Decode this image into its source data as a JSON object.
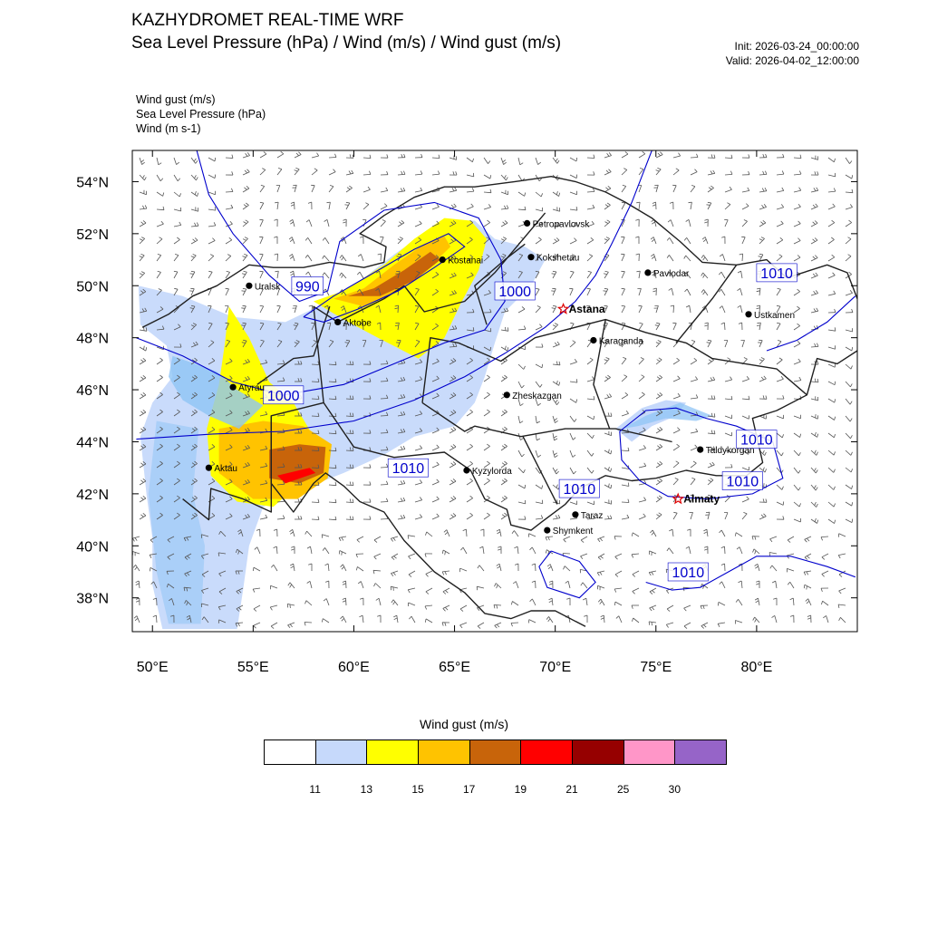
{
  "header": {
    "title": "KAZHYDROMET REAL-TIME WRF",
    "subtitle": "Sea Level Pressure  (hPa) / Wind  (m/s) / Wind gust  (m/s)",
    "init": "Init: 2026-03-24_00:00:00",
    "valid": "Valid: 2026-04-02_12:00:00"
  },
  "fields": [
    "Wind gust   (m/s)",
    "Sea Level Pressure   (hPa)",
    "Wind   (m s-1)"
  ],
  "chart_data": {
    "type": "heatmap",
    "map": {
      "lon_range": [
        49,
        85
      ],
      "lat_range": [
        36.7,
        55.2
      ],
      "lon_ticks": [
        50,
        55,
        60,
        65,
        70,
        75,
        80
      ],
      "lon_tick_labels": [
        "50°E",
        "55°E",
        "60°E",
        "65°E",
        "70°E",
        "75°E",
        "80°E"
      ],
      "lat_ticks": [
        38,
        40,
        42,
        44,
        46,
        48,
        50,
        52,
        54
      ],
      "lat_tick_labels": [
        "38°N",
        "40°N",
        "42°N",
        "44°N",
        "46°N",
        "48°N",
        "50°N",
        "52°N",
        "54°N"
      ]
    },
    "cities": [
      {
        "name": "Petropavlovsk",
        "lon": 68.6,
        "lat": 52.4,
        "marker": "dot"
      },
      {
        "name": "Kostanai",
        "lon": 64.4,
        "lat": 51.0,
        "marker": "dot"
      },
      {
        "name": "Kokshetau",
        "lon": 68.8,
        "lat": 51.1,
        "marker": "dot"
      },
      {
        "name": "Uralsk",
        "lon": 54.8,
        "lat": 50.0,
        "marker": "dot"
      },
      {
        "name": "Pavlodar",
        "lon": 74.6,
        "lat": 50.5,
        "marker": "dot"
      },
      {
        "name": "Astana",
        "lon": 70.4,
        "lat": 49.1,
        "marker": "star"
      },
      {
        "name": "Aktobe",
        "lon": 59.2,
        "lat": 48.6,
        "marker": "dot"
      },
      {
        "name": "Ustkamen",
        "lon": 79.6,
        "lat": 48.9,
        "marker": "dot"
      },
      {
        "name": "Karaganda",
        "lon": 71.9,
        "lat": 47.9,
        "marker": "dot"
      },
      {
        "name": "Atyrau",
        "lon": 54.0,
        "lat": 46.1,
        "marker": "dot"
      },
      {
        "name": "Zheskazgan",
        "lon": 67.6,
        "lat": 45.8,
        "marker": "dot"
      },
      {
        "name": "Taldykorgan",
        "lon": 77.2,
        "lat": 43.7,
        "marker": "dot"
      },
      {
        "name": "Aktau",
        "lon": 52.8,
        "lat": 43.0,
        "marker": "dot"
      },
      {
        "name": "Kyzylorda",
        "lon": 65.6,
        "lat": 42.9,
        "marker": "dot"
      },
      {
        "name": "Almaty",
        "lon": 76.1,
        "lat": 41.8,
        "marker": "star"
      },
      {
        "name": "Taraz",
        "lon": 71.0,
        "lat": 41.2,
        "marker": "dot"
      },
      {
        "name": "Shymkent",
        "lon": 69.6,
        "lat": 40.6,
        "marker": "dot"
      }
    ],
    "pressure_labels": [
      {
        "text": "990",
        "lon": 57.7,
        "lat": 50.0
      },
      {
        "text": "1000",
        "lon": 68.0,
        "lat": 49.8
      },
      {
        "text": "1010",
        "lon": 81.0,
        "lat": 50.5
      },
      {
        "text": "1000",
        "lon": 56.5,
        "lat": 45.8
      },
      {
        "text": "1010",
        "lon": 80.0,
        "lat": 44.1
      },
      {
        "text": "1010",
        "lon": 79.3,
        "lat": 42.5
      },
      {
        "text": "1010",
        "lon": 62.7,
        "lat": 43.0
      },
      {
        "text": "1010",
        "lon": 71.2,
        "lat": 42.2
      },
      {
        "text": "1010",
        "lon": 76.6,
        "lat": 39.0
      }
    ],
    "pressure_contours": [
      {
        "level": 990,
        "points": [
          [
            57.5,
            48.8
          ],
          [
            59.0,
            49.6
          ],
          [
            61.0,
            50.5
          ],
          [
            63.0,
            51.4
          ],
          [
            64.7,
            52.0
          ],
          [
            65.5,
            51.5
          ],
          [
            64.0,
            50.7
          ],
          [
            62.2,
            49.8
          ],
          [
            60.2,
            49.1
          ],
          [
            58.5,
            48.6
          ],
          [
            57.5,
            48.8
          ]
        ]
      },
      {
        "level": 1000,
        "points": [
          [
            49.2,
            48.0
          ],
          [
            51.5,
            47.3
          ],
          [
            54.0,
            46.3
          ],
          [
            56.5,
            45.8
          ],
          [
            59.5,
            46.2
          ],
          [
            62.0,
            47.0
          ],
          [
            64.5,
            47.8
          ],
          [
            66.5,
            48.3
          ],
          [
            67.5,
            49.4
          ],
          [
            67.3,
            51.0
          ],
          [
            66.2,
            52.6
          ],
          [
            64.0,
            53.2
          ],
          [
            61.5,
            52.9
          ],
          [
            59.3,
            51.7
          ],
          [
            58.7,
            49.8
          ],
          [
            57.3,
            49.4
          ],
          [
            55.8,
            50.4
          ],
          [
            54.0,
            52.0
          ],
          [
            52.8,
            53.5
          ],
          [
            52.2,
            55.2
          ]
        ]
      },
      {
        "level": 1010,
        "points": [
          [
            74.8,
            55.2
          ],
          [
            73.8,
            53.2
          ],
          [
            72.8,
            51.6
          ],
          [
            72.0,
            50.4
          ],
          [
            71.0,
            49.4
          ],
          [
            69.5,
            48.4
          ],
          [
            67.5,
            47.4
          ],
          [
            65.5,
            46.5
          ],
          [
            63.0,
            45.6
          ],
          [
            60.0,
            44.8
          ],
          [
            56.5,
            44.4
          ],
          [
            53.0,
            44.3
          ],
          [
            49.2,
            44.1
          ]
        ]
      },
      {
        "level": 1010,
        "points": [
          [
            73.2,
            44.4
          ],
          [
            74.5,
            45.2
          ],
          [
            76.0,
            45.3
          ],
          [
            77.5,
            44.9
          ],
          [
            79.0,
            44.6
          ],
          [
            80.8,
            44.0
          ],
          [
            81.3,
            42.6
          ],
          [
            79.8,
            42.0
          ],
          [
            77.6,
            41.8
          ],
          [
            75.6,
            41.9
          ],
          [
            74.2,
            42.5
          ],
          [
            73.3,
            43.3
          ],
          [
            73.2,
            44.4
          ]
        ]
      },
      {
        "level": 1010,
        "points": [
          [
            80.5,
            47.5
          ],
          [
            82.0,
            47.9
          ],
          [
            83.5,
            48.6
          ],
          [
            84.9,
            49.6
          ]
        ]
      },
      {
        "level": 1010,
        "points": [
          [
            74.5,
            38.6
          ],
          [
            75.8,
            38.3
          ],
          [
            77.2,
            38.4
          ],
          [
            78.6,
            39.0
          ],
          [
            80.0,
            39.6
          ],
          [
            81.7,
            39.6
          ],
          [
            83.5,
            39.2
          ],
          [
            84.9,
            38.8
          ]
        ]
      },
      {
        "level": 1010,
        "points": [
          [
            69.8,
            39.8
          ],
          [
            71.2,
            39.4
          ],
          [
            72.0,
            38.6
          ],
          [
            71.2,
            38.0
          ],
          [
            69.6,
            38.4
          ],
          [
            69.2,
            39.2
          ],
          [
            69.8,
            39.8
          ]
        ]
      }
    ],
    "gust_areas": [
      {
        "level": "11-13",
        "points": [
          [
            49.3,
            50.0
          ],
          [
            51.5,
            49.6
          ],
          [
            54.0,
            48.8
          ],
          [
            56.6,
            48.6
          ],
          [
            58.5,
            49.3
          ],
          [
            60.5,
            50.3
          ],
          [
            62.0,
            51.2
          ],
          [
            63.5,
            52.0
          ],
          [
            64.8,
            52.5
          ],
          [
            66.0,
            52.5
          ],
          [
            67.0,
            51.8
          ],
          [
            68.5,
            51.5
          ],
          [
            69.5,
            51.0
          ],
          [
            68.8,
            50.0
          ],
          [
            67.5,
            49.0
          ],
          [
            67.0,
            47.8
          ],
          [
            66.5,
            46.5
          ],
          [
            66.0,
            45.5
          ],
          [
            65.0,
            44.6
          ],
          [
            63.0,
            44.2
          ],
          [
            61.5,
            43.5
          ],
          [
            59.5,
            42.8
          ],
          [
            57.5,
            42.2
          ],
          [
            55.5,
            41.5
          ],
          [
            54.8,
            40.0
          ],
          [
            54.5,
            38.3
          ],
          [
            54.2,
            36.8
          ],
          [
            50.5,
            36.8
          ],
          [
            50.0,
            38.5
          ],
          [
            50.0,
            40.3
          ],
          [
            49.7,
            42.0
          ],
          [
            49.4,
            44.2
          ],
          [
            50.0,
            45.5
          ],
          [
            51.0,
            46.5
          ],
          [
            50.7,
            47.7
          ],
          [
            49.4,
            48.5
          ],
          [
            49.3,
            50.0
          ]
        ]
      },
      {
        "level": "11-13",
        "points": [
          [
            73.0,
            44.5
          ],
          [
            74.3,
            45.3
          ],
          [
            75.5,
            45.6
          ],
          [
            76.5,
            45.5
          ],
          [
            76.0,
            45.0
          ],
          [
            74.8,
            44.6
          ],
          [
            73.8,
            44.0
          ],
          [
            73.0,
            44.5
          ]
        ]
      },
      {
        "level": "13-15",
        "points": [
          [
            53.8,
            49.2
          ],
          [
            54.8,
            48.0
          ],
          [
            55.8,
            46.3
          ],
          [
            57.0,
            45.5
          ],
          [
            58.0,
            44.2
          ],
          [
            57.6,
            42.6
          ],
          [
            56.0,
            41.5
          ],
          [
            54.2,
            41.7
          ],
          [
            52.9,
            42.7
          ],
          [
            52.7,
            44.5
          ],
          [
            53.3,
            46.2
          ],
          [
            53.6,
            47.8
          ],
          [
            53.8,
            49.2
          ]
        ]
      },
      {
        "level": "13-15",
        "points": [
          [
            58.0,
            49.4
          ],
          [
            59.5,
            49.8
          ],
          [
            61.5,
            50.8
          ],
          [
            63.0,
            51.8
          ],
          [
            64.5,
            52.6
          ],
          [
            65.8,
            52.5
          ],
          [
            66.6,
            51.8
          ],
          [
            66.2,
            50.6
          ],
          [
            65.3,
            49.3
          ],
          [
            64.5,
            48.0
          ],
          [
            63.2,
            47.2
          ],
          [
            61.2,
            48.0
          ],
          [
            59.5,
            48.7
          ],
          [
            58.0,
            49.4
          ]
        ]
      },
      {
        "level": "15-17",
        "points": [
          [
            53.3,
            44.5
          ],
          [
            55.5,
            44.8
          ],
          [
            57.5,
            44.6
          ],
          [
            58.9,
            43.9
          ],
          [
            58.7,
            42.6
          ],
          [
            57.2,
            41.8
          ],
          [
            55.0,
            41.8
          ],
          [
            53.3,
            42.8
          ],
          [
            53.3,
            44.5
          ]
        ]
      },
      {
        "level": "15-17",
        "points": [
          [
            59.0,
            49.5
          ],
          [
            60.5,
            49.9
          ],
          [
            62.0,
            50.8
          ],
          [
            63.5,
            51.6
          ],
          [
            64.5,
            51.9
          ],
          [
            64.8,
            51.5
          ],
          [
            63.6,
            50.6
          ],
          [
            62.0,
            49.7
          ],
          [
            60.5,
            49.2
          ],
          [
            59.0,
            49.5
          ]
        ]
      },
      {
        "level": "17-19",
        "points": [
          [
            55.8,
            43.7
          ],
          [
            57.3,
            43.9
          ],
          [
            58.6,
            43.8
          ],
          [
            58.5,
            42.8
          ],
          [
            57.3,
            42.4
          ],
          [
            55.8,
            42.6
          ],
          [
            55.8,
            43.7
          ]
        ]
      },
      {
        "level": "17-19",
        "points": [
          [
            59.7,
            49.6
          ],
          [
            61.0,
            49.9
          ],
          [
            62.5,
            50.6
          ],
          [
            63.8,
            51.3
          ],
          [
            64.3,
            51.0
          ],
          [
            63.0,
            50.2
          ],
          [
            61.3,
            49.6
          ],
          [
            59.7,
            49.6
          ]
        ]
      },
      {
        "level": "19-21",
        "points": [
          [
            56.2,
            42.7
          ],
          [
            57.8,
            43.0
          ],
          [
            58.1,
            42.8
          ],
          [
            56.6,
            42.4
          ],
          [
            56.2,
            42.7
          ]
        ]
      }
    ],
    "colorbar": {
      "title": "Wind gust (m/s)",
      "levels": [
        11,
        13,
        15,
        17,
        19,
        21,
        25,
        30
      ],
      "colors": [
        "#ffffff",
        "#c6d9fb",
        "#ffff00",
        "#ffc300",
        "#c8640a",
        "#ff0000",
        "#960000",
        "#ff96c8",
        "#9664c8"
      ]
    }
  },
  "colors": {
    "contour": "#0000cc",
    "border": "#202020",
    "barb": "#555555",
    "sea": "#8fc4f5",
    "star": "#dd0000"
  }
}
